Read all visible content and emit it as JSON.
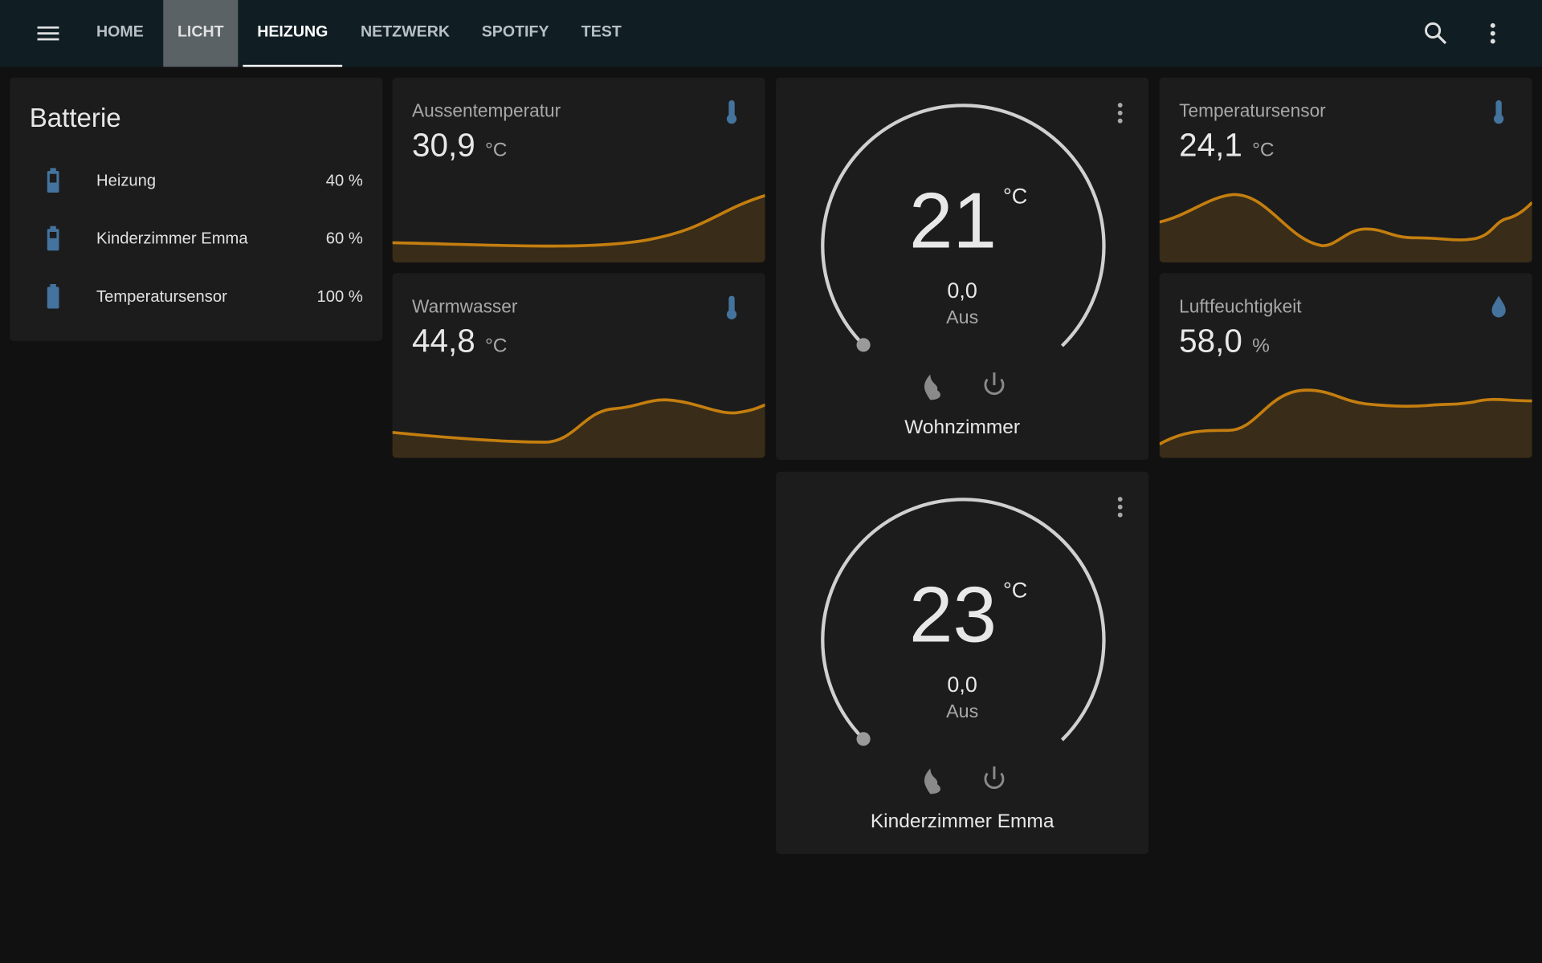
{
  "nav": {
    "tabs": [
      "HOME",
      "LICHT",
      "HEIZUNG",
      "NETZWERK",
      "SPOTIFY",
      "TEST"
    ]
  },
  "battery_card": {
    "title": "Batterie",
    "rows": [
      {
        "name": "Heizung",
        "value": "40 %"
      },
      {
        "name": "Kinderzimmer Emma",
        "value": "60 %"
      },
      {
        "name": "Temperatursensor",
        "value": "100 %"
      }
    ]
  },
  "sensors": [
    {
      "name": "Aussentemperatur",
      "value": "30,9",
      "unit": "°C"
    },
    {
      "name": "Warmwasser",
      "value": "44,8",
      "unit": "°C"
    },
    {
      "name": "Temperatursensor",
      "value": "24,1",
      "unit": "°C"
    },
    {
      "name": "Luftfeuchtigkeit",
      "value": "58,0",
      "unit": "%"
    }
  ],
  "thermostats": [
    {
      "target": "21",
      "unit": "°C",
      "current": "0,0",
      "state": "Aus",
      "name": "Wohnzimmer"
    },
    {
      "target": "23",
      "unit": "°C",
      "current": "0,0",
      "state": "Aus",
      "name": "Kinderzimmer Emma"
    }
  ]
}
